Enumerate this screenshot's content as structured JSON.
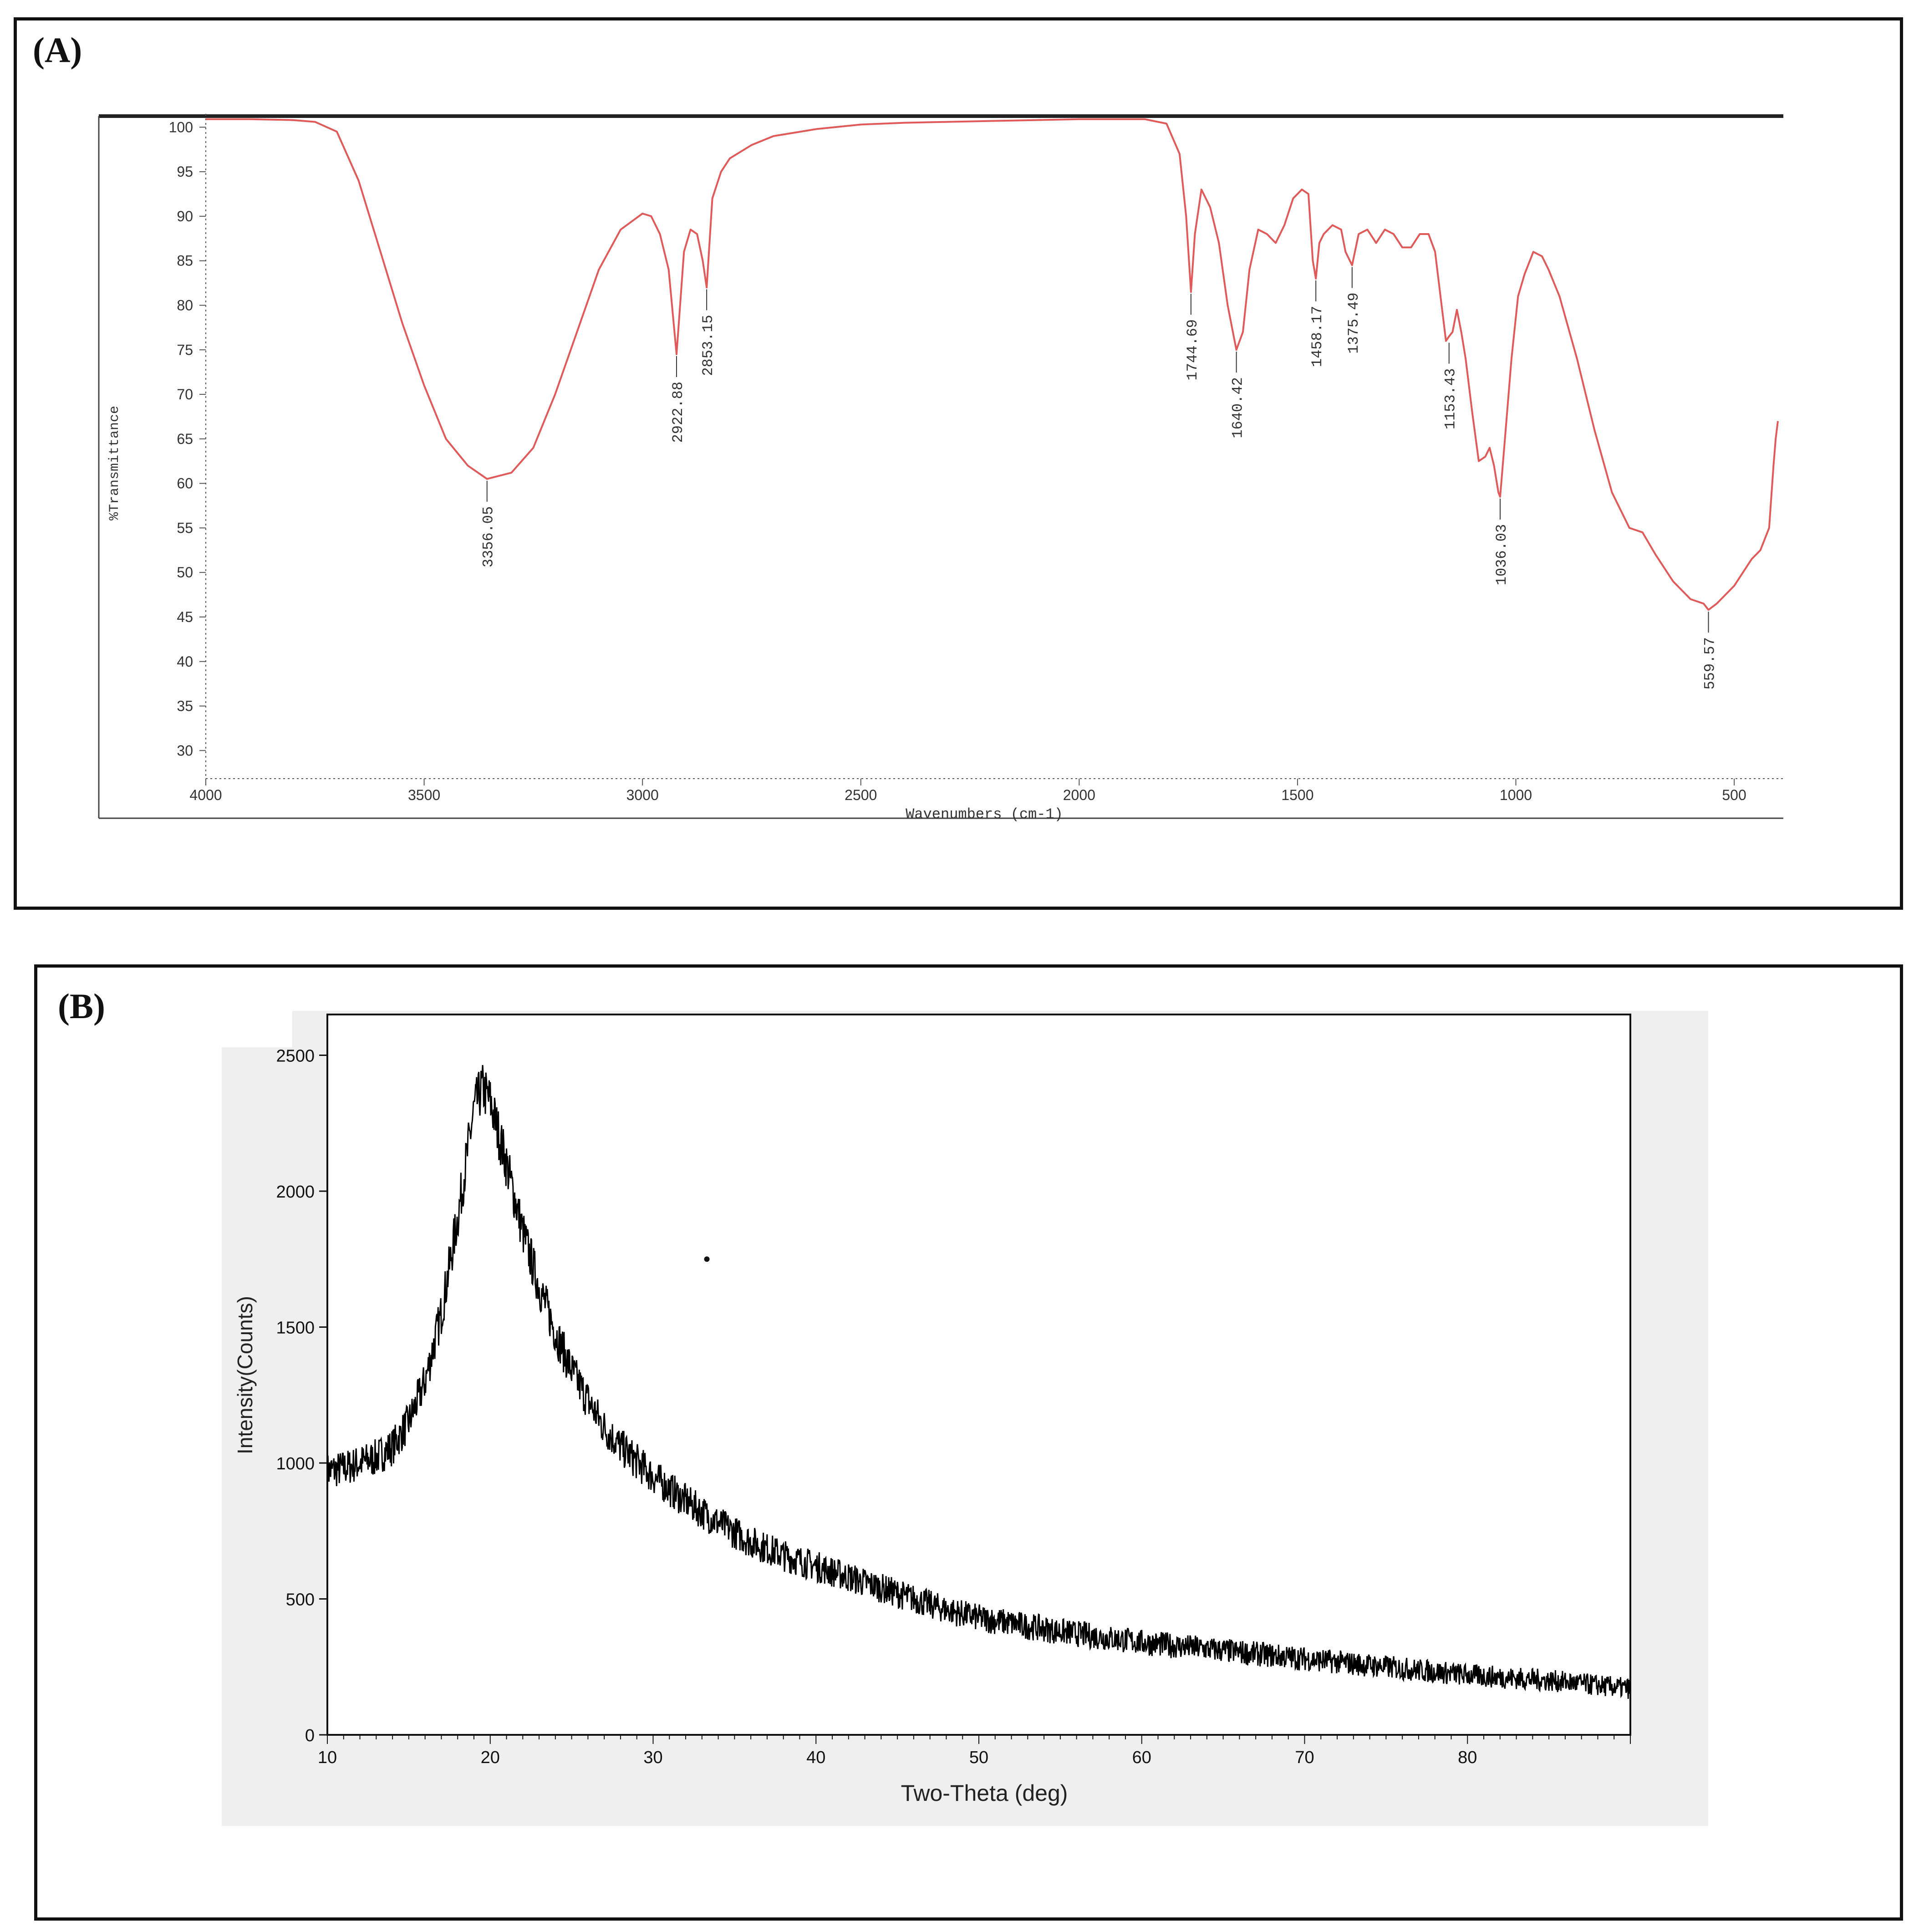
{
  "panels": {
    "a_label": "(A)",
    "b_label": "(B)"
  },
  "chart_data": [
    {
      "type": "line",
      "panel": "(A)",
      "title": "",
      "xlabel": "Wavenumbers (cm-1)",
      "ylabel": "%Transmittance",
      "xlim": [
        4000,
        400
      ],
      "ylim": [
        27,
        101.5
      ],
      "x_reversed": true,
      "grid": false,
      "line_color": "#e05a5a",
      "x_ticks": [
        4000,
        3500,
        3000,
        2500,
        2000,
        1500,
        1000,
        500
      ],
      "y_ticks": [
        100,
        95,
        90,
        85,
        80,
        75,
        70,
        65,
        60,
        55,
        50,
        45,
        40,
        35,
        30
      ],
      "series": [
        {
          "x": [
            4000,
            3900,
            3800,
            3750,
            3700,
            3650,
            3600,
            3550,
            3500,
            3450,
            3400,
            3356,
            3300,
            3250,
            3200,
            3150,
            3100,
            3050,
            3000,
            2980,
            2960,
            2940,
            2922,
            2905,
            2890,
            2875,
            2862,
            2853,
            2840,
            2820,
            2800,
            2750,
            2700,
            2600,
            2500,
            2400,
            2300,
            2200,
            2100,
            2000,
            1900,
            1850,
            1800,
            1770,
            1755,
            1744,
            1735,
            1720,
            1700,
            1680,
            1660,
            1640,
            1625,
            1610,
            1590,
            1570,
            1550,
            1530,
            1510,
            1490,
            1475,
            1465,
            1458,
            1450,
            1440,
            1420,
            1400,
            1390,
            1375,
            1360,
            1340,
            1320,
            1300,
            1280,
            1260,
            1240,
            1220,
            1200,
            1185,
            1170,
            1160,
            1153,
            1145,
            1135,
            1125,
            1115,
            1100,
            1085,
            1070,
            1060,
            1050,
            1040,
            1036,
            1025,
            1010,
            995,
            980,
            960,
            940,
            925,
            900,
            860,
            820,
            780,
            740,
            710,
            680,
            640,
            600,
            570,
            559,
            540,
            520,
            500,
            480,
            460,
            440,
            420,
            410,
            405,
            400
          ],
          "y": [
            100.9,
            100.9,
            100.8,
            100.6,
            99.5,
            94,
            86,
            78,
            71,
            65,
            62,
            60.5,
            61.2,
            64,
            70,
            77,
            84,
            88.5,
            90.3,
            90,
            88,
            84,
            74.5,
            86,
            88.5,
            88,
            85,
            82,
            92,
            95,
            96.5,
            98,
            99,
            99.8,
            100.3,
            100.5,
            100.6,
            100.7,
            100.8,
            100.9,
            100.9,
            100.9,
            100.4,
            97,
            90,
            81.5,
            88,
            93,
            91,
            87,
            80,
            75,
            77,
            84,
            88.5,
            88,
            87,
            89,
            92,
            93,
            92.5,
            85,
            83,
            87,
            88,
            89,
            88.5,
            86,
            84.5,
            88,
            88.5,
            87,
            88.5,
            88,
            86.5,
            86.5,
            88,
            88,
            86,
            80,
            76,
            76.5,
            77,
            79.5,
            77,
            74,
            68,
            62.5,
            63,
            64,
            62,
            59,
            58.5,
            65,
            74,
            81,
            83.5,
            86,
            85.5,
            84,
            81,
            74,
            66,
            59,
            55,
            54.5,
            52,
            49,
            47,
            46.5,
            45.8,
            46.5,
            47.5,
            48.5,
            50,
            51.5,
            52.5,
            55,
            62,
            65,
            67
          ]
        }
      ],
      "annotations": [
        {
          "x": 3356,
          "y": 60.5,
          "label": "3356.05"
        },
        {
          "x": 2922,
          "y": 74.5,
          "label": "2922.88"
        },
        {
          "x": 2853,
          "y": 82,
          "label": "2853.15"
        },
        {
          "x": 1744,
          "y": 81.5,
          "label": "1744.69"
        },
        {
          "x": 1640,
          "y": 75,
          "label": "1640.42"
        },
        {
          "x": 1458,
          "y": 83,
          "label": "1458.17"
        },
        {
          "x": 1375,
          "y": 84.5,
          "label": "1375.49"
        },
        {
          "x": 1153,
          "y": 76,
          "label": "1153.43"
        },
        {
          "x": 1036,
          "y": 58.5,
          "label": "1036.03"
        },
        {
          "x": 559,
          "y": 45.8,
          "label": "559.57"
        }
      ]
    },
    {
      "type": "line",
      "panel": "(B)",
      "title": "",
      "xlabel": "Two-Theta (deg)",
      "ylabel": "Intensity(Counts)",
      "xlim": [
        10,
        90
      ],
      "ylim": [
        0,
        2650
      ],
      "grid": false,
      "line_color": "#000000",
      "x_ticks": [
        10,
        20,
        30,
        40,
        50,
        60,
        70,
        80
      ],
      "y_ticks": [
        0,
        500,
        1000,
        1500,
        2000,
        2500
      ],
      "series": [
        {
          "x": [
            10,
            11,
            12,
            13,
            14,
            15,
            16,
            17,
            18,
            19,
            19.5,
            20,
            21,
            22,
            23,
            24,
            25,
            26,
            27,
            28,
            30,
            32,
            34,
            36,
            38,
            40,
            42,
            44,
            46,
            48,
            50,
            55,
            60,
            65,
            70,
            75,
            80,
            85,
            90
          ],
          "y": [
            970,
            980,
            1000,
            1020,
            1060,
            1150,
            1300,
            1550,
            1900,
            2300,
            2380,
            2330,
            2100,
            1850,
            1650,
            1480,
            1340,
            1230,
            1130,
            1060,
            950,
            860,
            780,
            710,
            660,
            620,
            580,
            540,
            500,
            460,
            430,
            380,
            340,
            310,
            280,
            250,
            220,
            200,
            170
          ]
        }
      ],
      "outlier_point": {
        "x": 33.3,
        "y": 1750
      }
    }
  ]
}
